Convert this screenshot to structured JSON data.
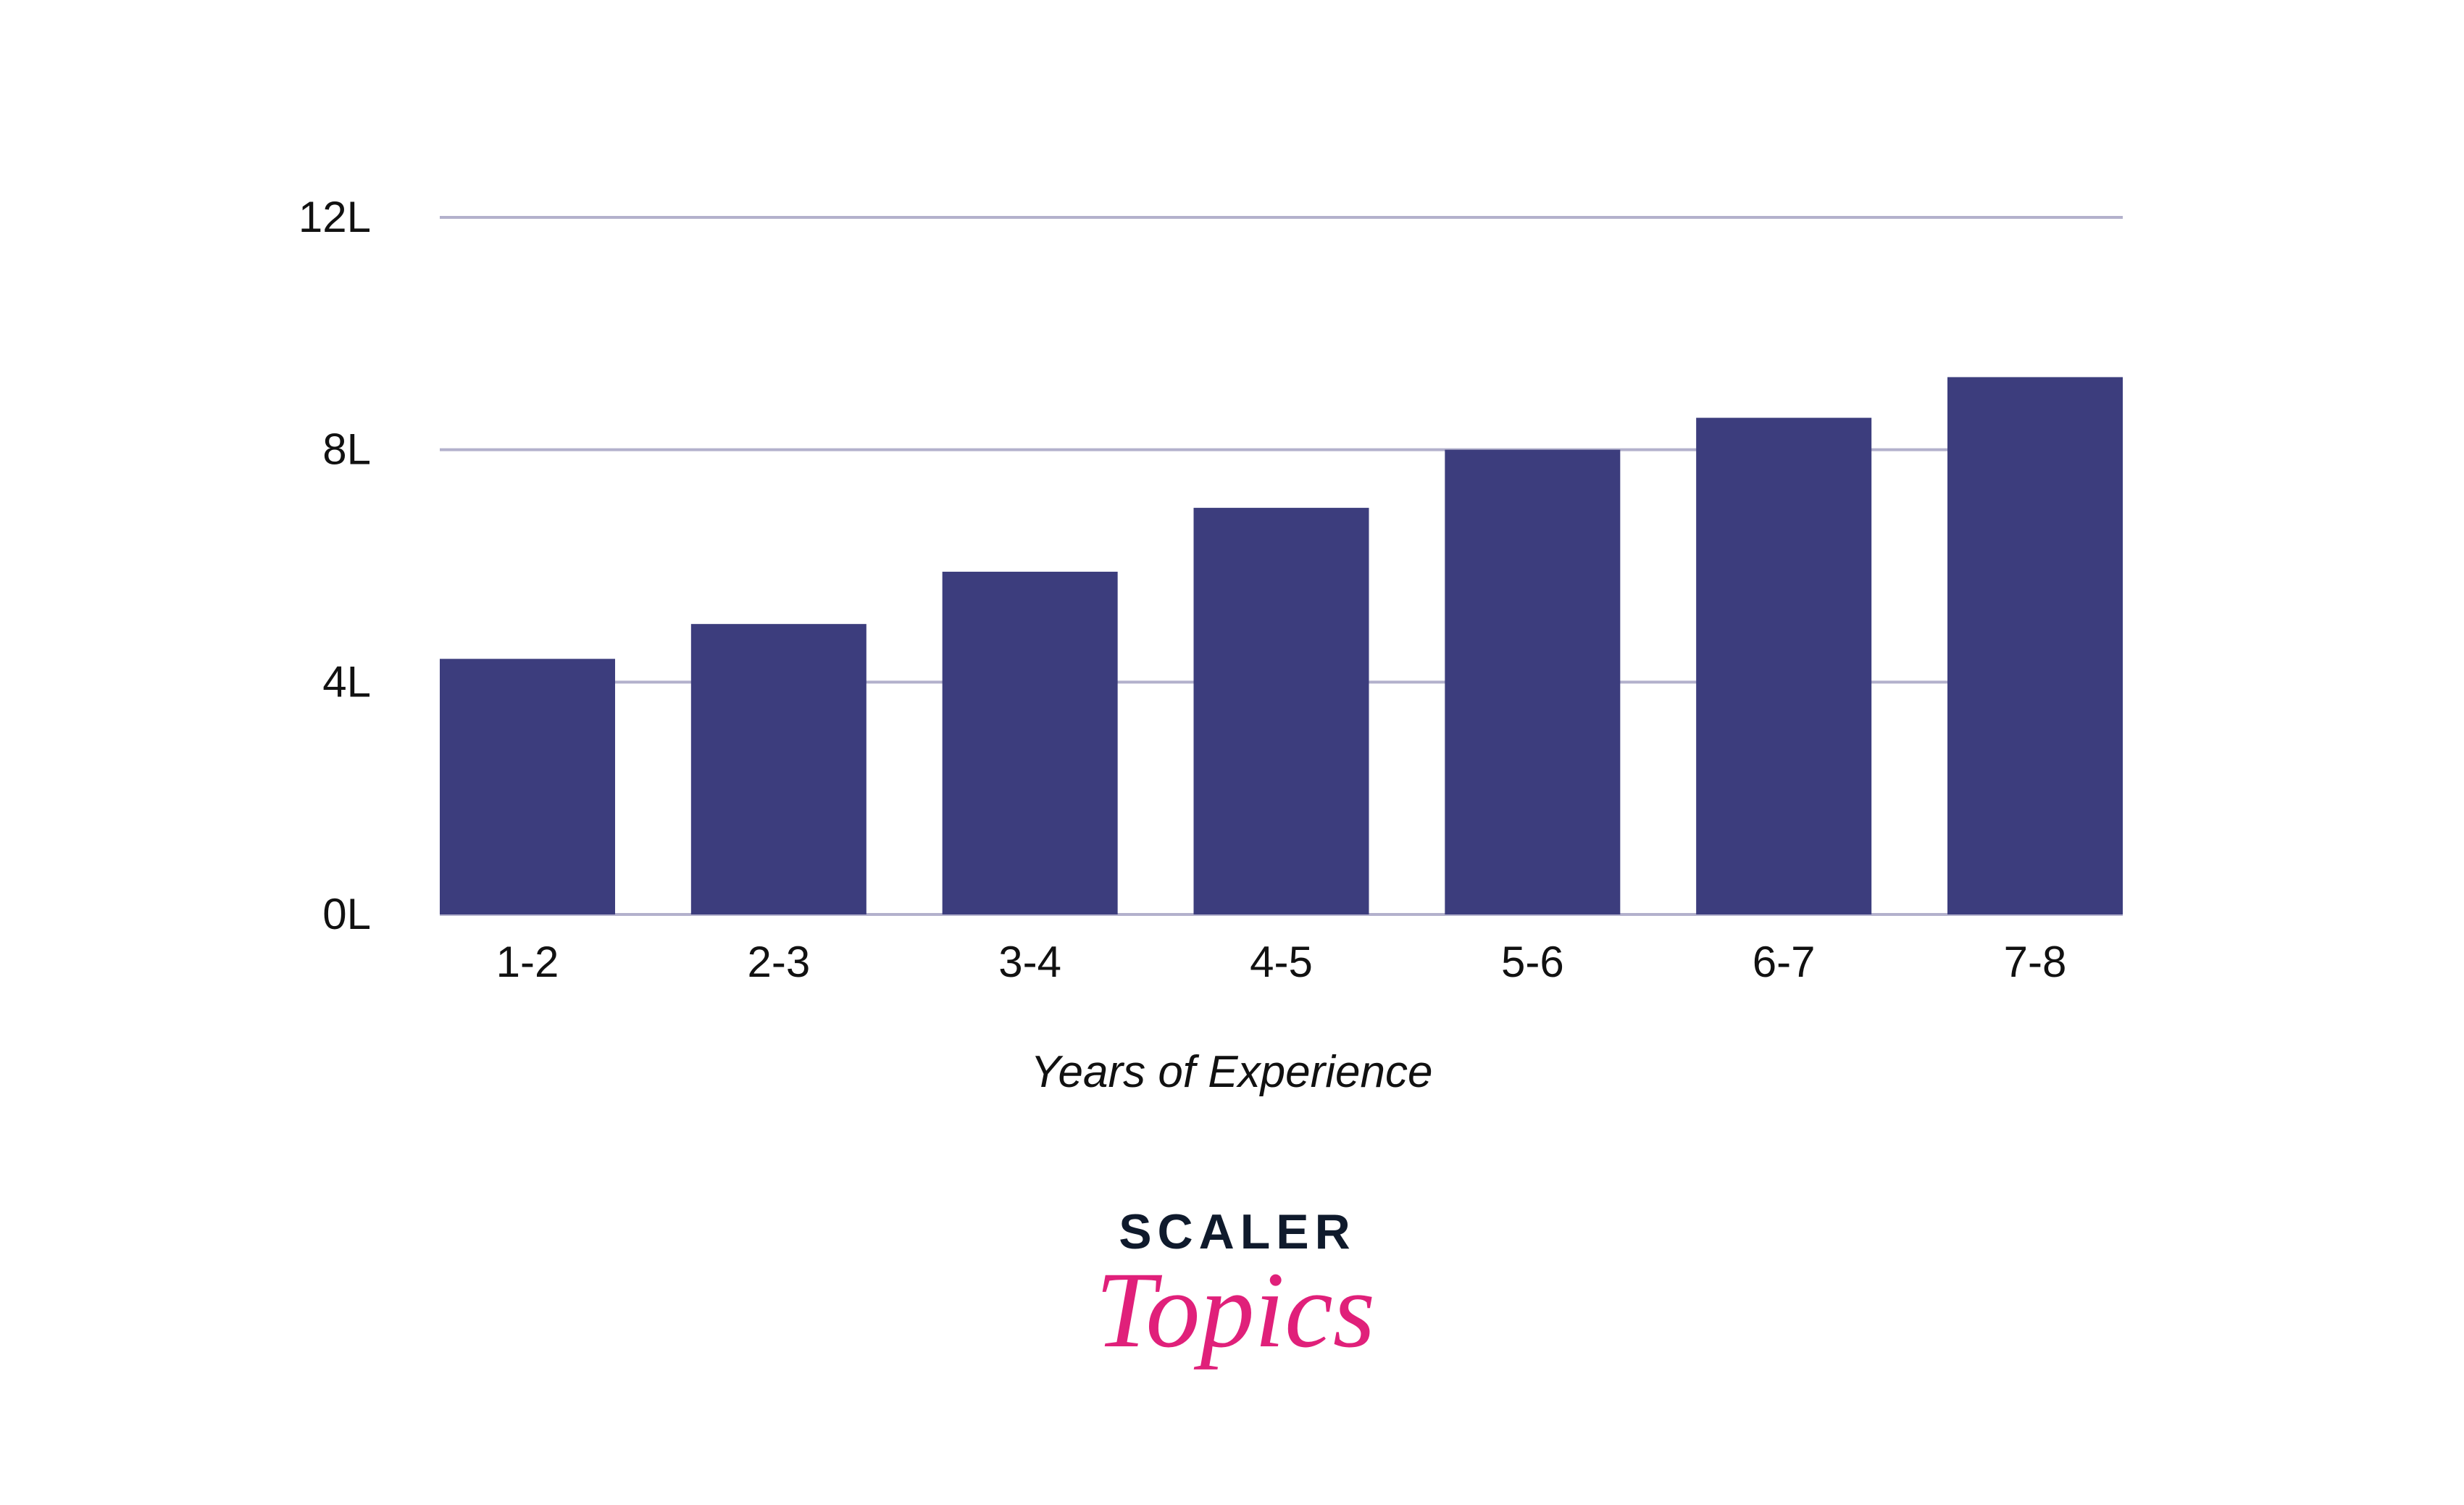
{
  "chart_data": {
    "type": "bar",
    "categories": [
      "1-2",
      "2-3",
      "3-4",
      "4-5",
      "5-6",
      "6-7",
      "7-8"
    ],
    "values": [
      4.4,
      5.0,
      5.9,
      7.0,
      8.0,
      8.55,
      9.25
    ],
    "xlabel": "Years of Experience",
    "ylabel": "",
    "ylim": [
      0,
      12
    ],
    "yticks": [
      0,
      4,
      8,
      12
    ],
    "ytick_labels": [
      "0L",
      "4L",
      "8L",
      "12L"
    ],
    "grid": true,
    "bar_color": "#3c3d7d",
    "grid_color": "#b3b1cc"
  },
  "logo": {
    "top": "SCALER",
    "bottom": "Topics"
  }
}
